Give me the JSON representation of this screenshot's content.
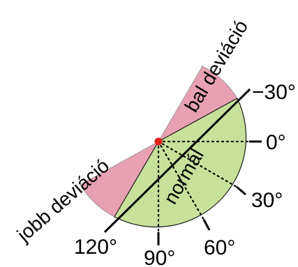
{
  "diagram": {
    "labels": {
      "minus_30": "−30°",
      "zero": "0°",
      "plus_30": "30°",
      "plus_60": "60°",
      "plus_90": "90°",
      "plus_120": "120°",
      "left_deviation": "bal deviáció",
      "normal": "normál",
      "right_deviation": "jobb deviáció"
    },
    "colors": {
      "normal_sector": "#c8e19a",
      "deviation_sector": "#e8a0b3",
      "center_dot": "#e0201b",
      "lines": "#000000"
    }
  }
}
